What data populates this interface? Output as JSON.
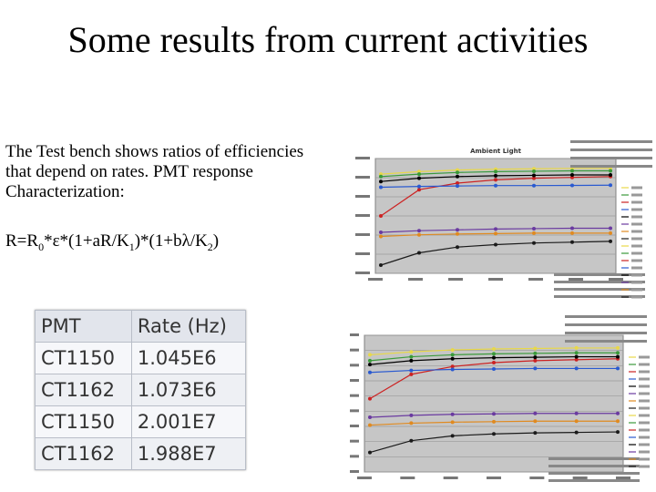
{
  "title": "Some results from current activities",
  "description_lines": [
    "The Test bench shows ratios of efficiencies",
    "that depend on rates. PMT response",
    "Characterization:"
  ],
  "formula": {
    "lhs": "R=R",
    "sub0": "0",
    "part1": "*ε*(1+aR/K",
    "sub1": "1",
    "part2": ")*(1+bλ/K",
    "sub2": "2",
    "part3": ")"
  },
  "table": {
    "headers": [
      "PMT",
      "Rate (Hz)"
    ],
    "rows": [
      [
        "CT1150",
        "1.045E6"
      ],
      [
        "CT1162",
        "1.073E6"
      ],
      [
        "CT1150",
        "2.001E7"
      ],
      [
        "CT1162",
        "1.988E7"
      ]
    ]
  },
  "chart_data": [
    {
      "type": "line",
      "title": "Ambient Light",
      "xlabel": "",
      "ylabel": "",
      "x_tick_count": 7,
      "y_tick_count": 7,
      "grid": true,
      "legend": "right",
      "plot_background": "#c6c6c6",
      "series": [
        {
          "color": "#e8d84a",
          "values": [
            0.81,
            0.84,
            0.86,
            0.87,
            0.875,
            0.88,
            0.88
          ]
        },
        {
          "color": "#3a9a3a",
          "values": [
            0.78,
            0.81,
            0.83,
            0.84,
            0.845,
            0.85,
            0.85
          ]
        },
        {
          "color": "#cc2222",
          "values": [
            0.3,
            0.62,
            0.7,
            0.74,
            0.76,
            0.77,
            0.78
          ]
        },
        {
          "color": "#2a5ad0",
          "values": [
            0.65,
            0.66,
            0.665,
            0.67,
            0.67,
            0.672,
            0.675
          ]
        },
        {
          "color": "#000000",
          "values": [
            0.72,
            0.76,
            0.78,
            0.79,
            0.795,
            0.8,
            0.8
          ]
        },
        {
          "color": "#6a3aa0",
          "values": [
            0.1,
            0.12,
            0.13,
            0.14,
            0.145,
            0.15,
            0.15
          ]
        },
        {
          "color": "#e08a20",
          "values": [
            0.05,
            0.07,
            0.08,
            0.085,
            0.09,
            0.09,
            0.09
          ]
        },
        {
          "color": "#1a1a1a",
          "values": [
            -0.3,
            -0.15,
            -0.08,
            -0.05,
            -0.03,
            -0.02,
            -0.01
          ]
        }
      ]
    },
    {
      "type": "line",
      "title": "",
      "xlabel": "",
      "ylabel": "",
      "x_tick_count": 7,
      "y_tick_count": 10,
      "grid": true,
      "legend": "right",
      "plot_background": "#c6c6c6",
      "series": [
        {
          "color": "#e8d84a",
          "values": [
            0.8,
            0.83,
            0.85,
            0.86,
            0.865,
            0.87,
            0.87
          ]
        },
        {
          "color": "#3a9a3a",
          "values": [
            0.74,
            0.78,
            0.8,
            0.81,
            0.815,
            0.82,
            0.82
          ]
        },
        {
          "color": "#cc2222",
          "values": [
            0.35,
            0.6,
            0.68,
            0.72,
            0.74,
            0.75,
            0.76
          ]
        },
        {
          "color": "#2a5ad0",
          "values": [
            0.62,
            0.64,
            0.65,
            0.655,
            0.66,
            0.66,
            0.66
          ]
        },
        {
          "color": "#000000",
          "values": [
            0.7,
            0.74,
            0.76,
            0.77,
            0.775,
            0.78,
            0.78
          ]
        },
        {
          "color": "#6a3aa0",
          "values": [
            0.16,
            0.18,
            0.19,
            0.195,
            0.2,
            0.2,
            0.2
          ]
        },
        {
          "color": "#e08a20",
          "values": [
            0.08,
            0.1,
            0.11,
            0.115,
            0.12,
            0.12,
            0.12
          ]
        },
        {
          "color": "#1a1a1a",
          "values": [
            -0.2,
            -0.08,
            -0.03,
            -0.01,
            0.0,
            0.005,
            0.01
          ]
        }
      ]
    }
  ]
}
